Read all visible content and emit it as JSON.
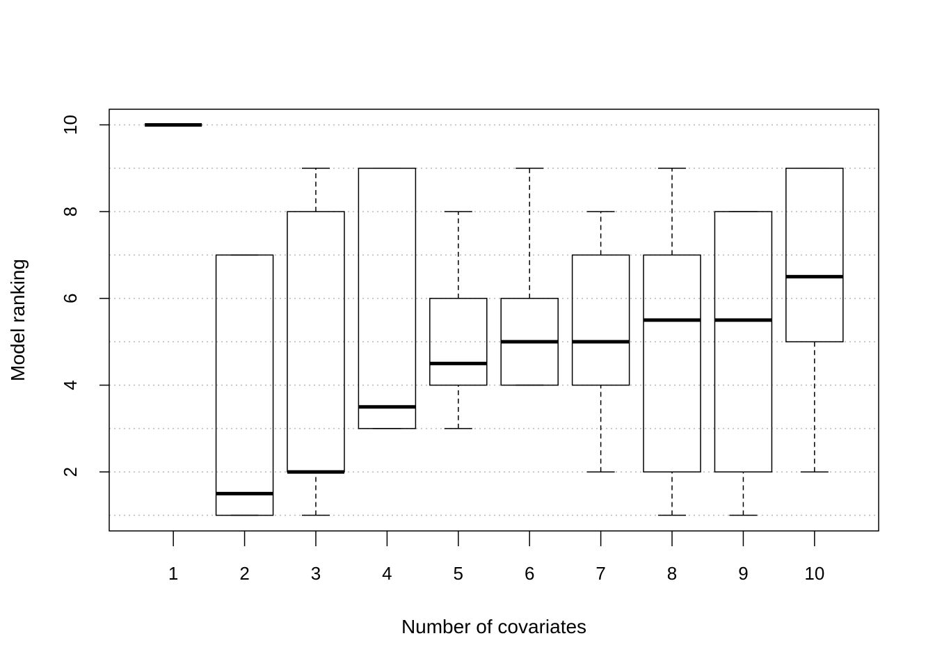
{
  "chart_data": {
    "type": "boxplot",
    "title": "",
    "xlabel": "Number of covariates",
    "ylabel": "Model ranking",
    "ylim": [
      0.64,
      10.36
    ],
    "yticks": [
      2,
      4,
      6,
      8,
      10
    ],
    "grid": {
      "horizontal": true,
      "style": "dotted",
      "levels": [
        1,
        2,
        3,
        4,
        5,
        6,
        7,
        8,
        9,
        10
      ]
    },
    "categories": [
      "1",
      "2",
      "3",
      "4",
      "5",
      "6",
      "7",
      "8",
      "9",
      "10"
    ],
    "boxes": [
      {
        "category": "1",
        "whisker_low": 10,
        "q1": 10,
        "median": 10,
        "q3": 10,
        "whisker_high": 10
      },
      {
        "category": "2",
        "whisker_low": 1,
        "q1": 1,
        "median": 1.5,
        "q3": 7,
        "whisker_high": 7
      },
      {
        "category": "3",
        "whisker_low": 1,
        "q1": 2,
        "median": 2,
        "q3": 8,
        "whisker_high": 9
      },
      {
        "category": "4",
        "whisker_low": 3,
        "q1": 3,
        "median": 3.5,
        "q3": 9,
        "whisker_high": 9
      },
      {
        "category": "5",
        "whisker_low": 3,
        "q1": 4,
        "median": 4.5,
        "q3": 6,
        "whisker_high": 8
      },
      {
        "category": "6",
        "whisker_low": 4,
        "q1": 4,
        "median": 5,
        "q3": 6,
        "whisker_high": 9
      },
      {
        "category": "7",
        "whisker_low": 2,
        "q1": 4,
        "median": 5,
        "q3": 7,
        "whisker_high": 8
      },
      {
        "category": "8",
        "whisker_low": 1,
        "q1": 2,
        "median": 5.5,
        "q3": 7,
        "whisker_high": 9
      },
      {
        "category": "9",
        "whisker_low": 1,
        "q1": 2,
        "median": 5.5,
        "q3": 8,
        "whisker_high": 8
      },
      {
        "category": "10",
        "whisker_low": 2,
        "q1": 5,
        "median": 6.5,
        "q3": 9,
        "whisker_high": 9
      }
    ]
  }
}
